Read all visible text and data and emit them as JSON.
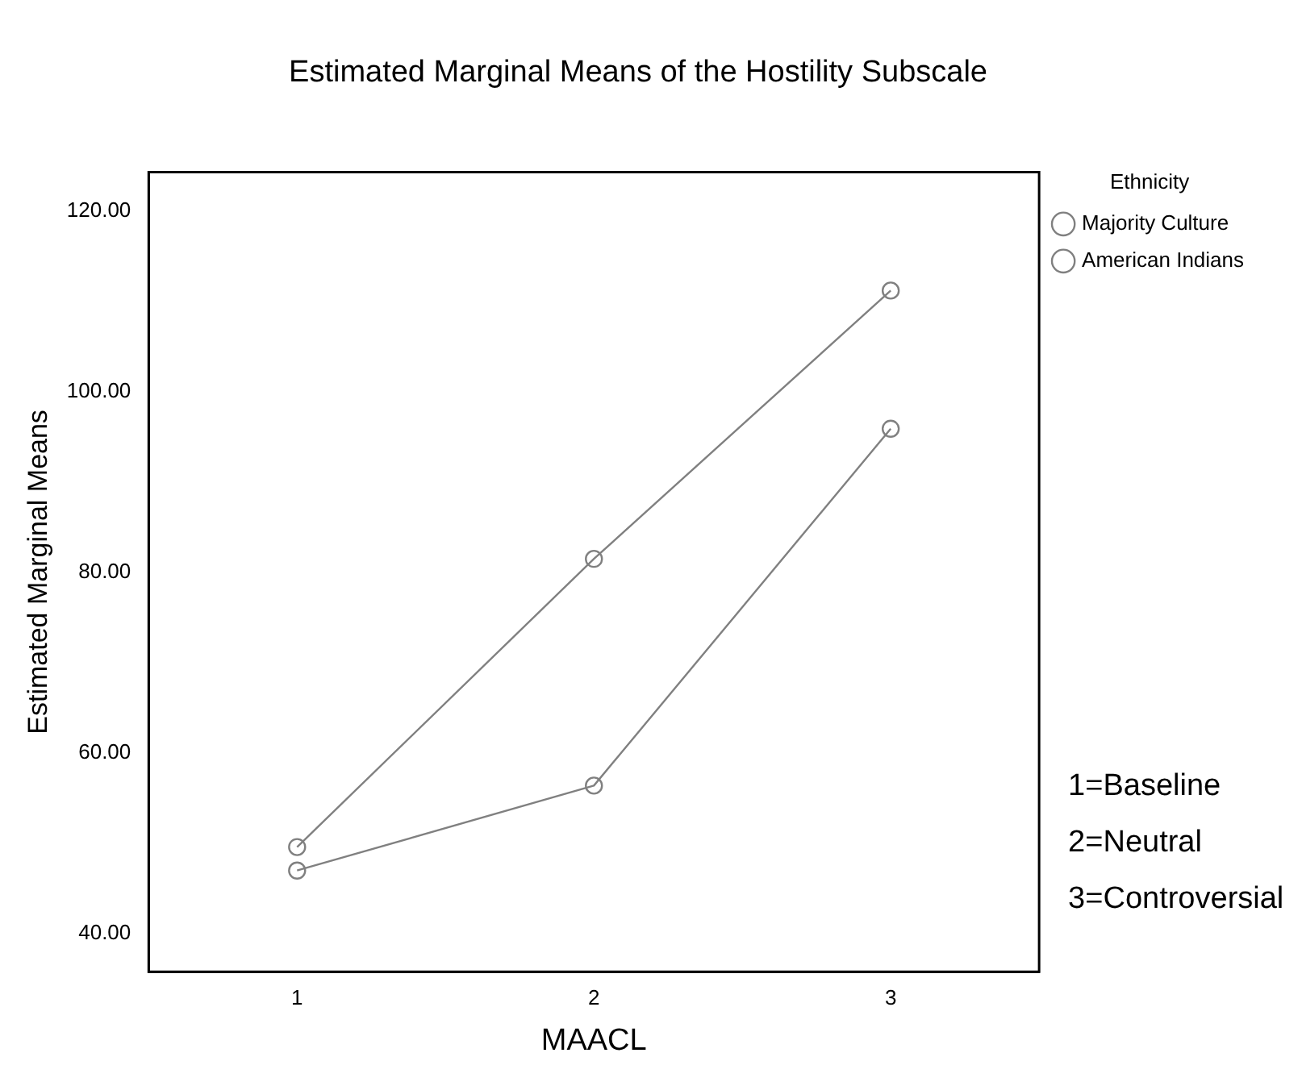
{
  "chart_data": {
    "type": "line",
    "title": "Estimated Marginal Means of the Hostility Subscale",
    "xlabel": "MAACL",
    "ylabel": "Estimated Marginal Means",
    "legend_title": "Ethnicity",
    "categories": [
      "1",
      "2",
      "3"
    ],
    "series": [
      {
        "name": "Majority Culture",
        "color": "#808080",
        "values": [
          49.6,
          81.5,
          111.2
        ]
      },
      {
        "name": "American Indians",
        "color": "#808080",
        "values": [
          47.0,
          56.4,
          95.9
        ]
      }
    ],
    "ylim": [
      35.8,
      124.3
    ],
    "yticks": [
      {
        "value": 40,
        "label": "40.00"
      },
      {
        "value": 60,
        "label": "60.00"
      },
      {
        "value": 80,
        "label": "80.00"
      },
      {
        "value": 100,
        "label": "100.00"
      },
      {
        "value": 120,
        "label": "120.00"
      }
    ],
    "grid": false,
    "legend": "top right",
    "marker": "circle",
    "line_style": "solid",
    "annotations": [
      "1=Baseline",
      "2=Neutral",
      "3=Controversial"
    ]
  }
}
